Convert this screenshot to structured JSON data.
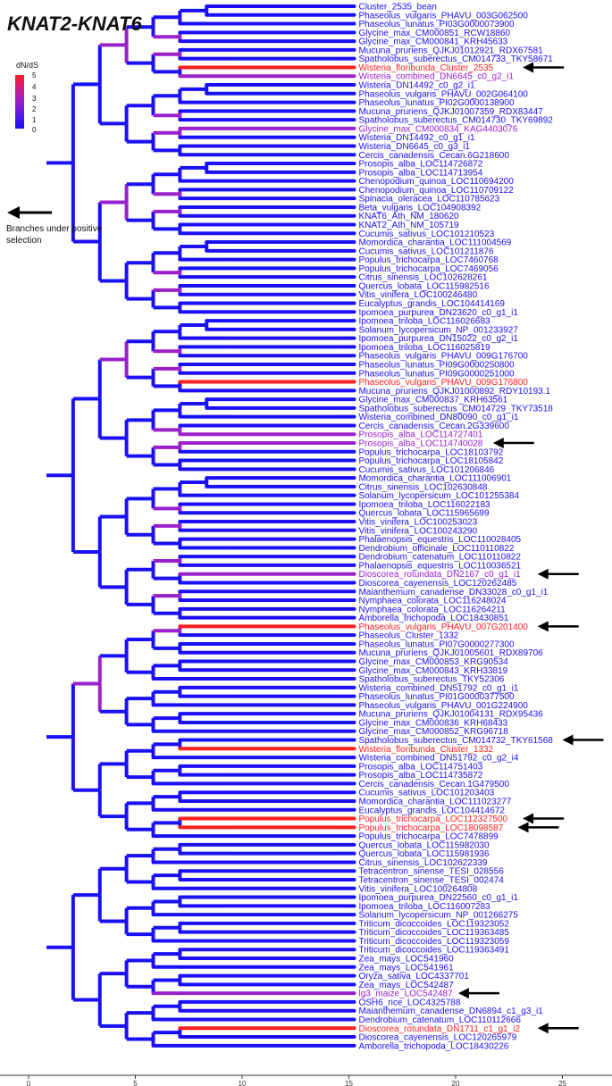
{
  "title": "KNAT2-KNAT6",
  "legend": {
    "title": "dN/dS",
    "ticks": [
      "5",
      "4",
      "3",
      "2",
      "1",
      "0"
    ]
  },
  "arrow_legend": "Branches under positive selection",
  "axis": {
    "ticks": [
      "0",
      "5",
      "10",
      "15",
      "20",
      "25"
    ]
  },
  "colors": {
    "high": "#ff1f1f",
    "mid": "#9a20cc",
    "low": "#1a10f5"
  },
  "leaves": [
    {
      "name": "Cluster_2535_bean",
      "c": "b"
    },
    {
      "name": "Phaseolus_vulgaris_PHAVU_003G062500",
      "c": "b"
    },
    {
      "name": "Phaseolus_lunatus_PI03G0000073900",
      "c": "b"
    },
    {
      "name": "Glycine_max_CM000851_RCW18860",
      "c": "b"
    },
    {
      "name": "Glycine_max_CM000841_KRH45633",
      "c": "b"
    },
    {
      "name": "Mucuna_pruriens_QJKJ01012921_RDX67581",
      "c": "b"
    },
    {
      "name": "Spatholobus_suberectus_CM014733_TKY58671",
      "c": "b"
    },
    {
      "name": "Wisteria_floribunda_Cluster_2535",
      "c": "r",
      "arrow": true
    },
    {
      "name": "Wisteria_combined_DN6645_c0_g2_i1",
      "c": "p"
    },
    {
      "name": "Wisteria_DN14492_c0_g2_i1",
      "c": "b"
    },
    {
      "name": "Phaseolus_vulgaris_PHAVU_002G064100",
      "c": "b"
    },
    {
      "name": "Phaseolus_lunatus_PI02G0000138900",
      "c": "b"
    },
    {
      "name": "Mucuna_pruriens_QJKJ01007359_RDX83447",
      "c": "b"
    },
    {
      "name": "Spatholobus_suberectus_CM014730_TKY69892",
      "c": "b"
    },
    {
      "name": "Glycine_max_CM000834_KAG4403076",
      "c": "p"
    },
    {
      "name": "Wisteria_DN14492_c0_g1_i1",
      "c": "b"
    },
    {
      "name": "Wisteria_DN6645_c0_g3_i1",
      "c": "b"
    },
    {
      "name": "Cercis_canadensis_Cecan.6G218600",
      "c": "b"
    },
    {
      "name": "Prosopis_alba_LOC114726872",
      "c": "b"
    },
    {
      "name": "Prosopis_alba_LOC114713954",
      "c": "b"
    },
    {
      "name": "Chenopodium_quinoa_LOC110694200",
      "c": "b"
    },
    {
      "name": "Chenopodium_quinoa_LOC110709122",
      "c": "b"
    },
    {
      "name": "Spinacia_oleracea_LOC110785623",
      "c": "b"
    },
    {
      "name": "Beta_vulgaris_LOC104908392",
      "c": "b"
    },
    {
      "name": "KNAT6_Ath_NM_180620",
      "c": "b"
    },
    {
      "name": "KNAT2_Ath_NM_105719",
      "c": "b"
    },
    {
      "name": "Cucumis_sativus_LOC101210523",
      "c": "b"
    },
    {
      "name": "Momordica_charantia_LOC111004569",
      "c": "b"
    },
    {
      "name": "Cucumis_sativus_LOC101211876",
      "c": "b"
    },
    {
      "name": "Populus_trichocarpa_LOC7460768",
      "c": "b"
    },
    {
      "name": "Populus_trichocarpa_LOC7469056",
      "c": "b"
    },
    {
      "name": "Citrus_sinensis_LOC102628261",
      "c": "b"
    },
    {
      "name": "Quercus_lobata_LOC115982516",
      "c": "b"
    },
    {
      "name": "Vitis_vinifera_LOC100246480",
      "c": "b"
    },
    {
      "name": "Eucalyptus_grandis_LOC104414169",
      "c": "b"
    },
    {
      "name": "Ipomoea_purpurea_DN23620_c0_g1_i1",
      "c": "b"
    },
    {
      "name": "Ipomoea_triloba_LOC116026683",
      "c": "b"
    },
    {
      "name": "Solanum_lycopersicum_NP_001233927",
      "c": "b"
    },
    {
      "name": "Ipomoea_purpurea_DN15022_c0_g2_i1",
      "c": "b"
    },
    {
      "name": "Ipomoea_triloba_LOC116025819",
      "c": "b"
    },
    {
      "name": "Phaseolus_vulgaris_PHAVU_009G176700",
      "c": "b"
    },
    {
      "name": "Phaseolus_lunatus_PI09G0000250800",
      "c": "b"
    },
    {
      "name": "Phaseolus_lunatus_PI09G0000251000",
      "c": "b"
    },
    {
      "name": "Phaseolus_vulgaris_PHAVU_009G176800",
      "c": "r"
    },
    {
      "name": "Mucuna_pruriens_QJKJ01000892_RDY10193.1",
      "c": "b"
    },
    {
      "name": "Glycine_max_CM000837_KRH63561",
      "c": "b"
    },
    {
      "name": "Spatholobus_suberectus_CM014729_TKY73518",
      "c": "b"
    },
    {
      "name": "Wisteria_combined_DN80090_c0_g1_i1",
      "c": "b"
    },
    {
      "name": "Cercis_canadensis_Cecan.2G339600",
      "c": "b"
    },
    {
      "name": "Prosopis_alba_LOC114727401",
      "c": "p"
    },
    {
      "name": "Prosopis_alba_LOC114740028",
      "c": "p",
      "arrow": true
    },
    {
      "name": "Populus_trichocarpa_LOC18103792",
      "c": "b"
    },
    {
      "name": "Populus_trichocarpa_LOC18105842",
      "c": "b"
    },
    {
      "name": "Cucumis_sativus_LOC101206846",
      "c": "b"
    },
    {
      "name": "Momordica_charantia_LOC111006901",
      "c": "b"
    },
    {
      "name": "Citrus_sinensis_LOC102630848",
      "c": "b"
    },
    {
      "name": "Solanum_lycopersicum_LOC101255384",
      "c": "b"
    },
    {
      "name": "Ipomoea_triloba_LOC116022183",
      "c": "b"
    },
    {
      "name": "Quercus_lobata_LOC115965699",
      "c": "b"
    },
    {
      "name": "Vitis_vinifera_LOC100253023",
      "c": "b"
    },
    {
      "name": "Vitis_vinifera_LOC100243290",
      "c": "b"
    },
    {
      "name": "Phalaenopsis_equestris_LOC110028405",
      "c": "b"
    },
    {
      "name": "Dendrobium_officinale_LOC110110822",
      "c": "b"
    },
    {
      "name": "Dendrobium_catenatum_LOC110110822",
      "c": "b"
    },
    {
      "name": "Phalaenopsis_equestris_LOC110036521",
      "c": "b"
    },
    {
      "name": "Dioscorea_rotundata_DN2167_c0_g1_i1",
      "c": "p",
      "arrow": true
    },
    {
      "name": "Dioscorea_cayenensis_LOC120262485",
      "c": "b"
    },
    {
      "name": "Maianthemum_canadense_DN33028_c0_g1_i1",
      "c": "b"
    },
    {
      "name": "Nymphaea_colorata_LOC116248024",
      "c": "b"
    },
    {
      "name": "Nymphaea_colorata_LOC116264211",
      "c": "b"
    },
    {
      "name": "Amborella_trichopoda_LOC18430851",
      "c": "b"
    },
    {
      "name": "Phaseolus_vulgaris_PHAVU_007G201400",
      "c": "r",
      "arrow": true
    },
    {
      "name": "Phaseolus_Cluster_1332",
      "c": "b"
    },
    {
      "name": "Phaseolus_lunatus_PI07G0000277300",
      "c": "b"
    },
    {
      "name": "Mucuna_pruriens_QJKJ01005601_RDX89706",
      "c": "b"
    },
    {
      "name": "Glycine_max_CM000853_KRG90534",
      "c": "b"
    },
    {
      "name": "Glycine_max_CM000843_KRH33819",
      "c": "b"
    },
    {
      "name": "Spatholobus_suberectus_TKY52306",
      "c": "b"
    },
    {
      "name": "Wisteria_combined_DN51792_c0_g1_i1",
      "c": "b"
    },
    {
      "name": "Phaseolus_lunatus_PI01G0000377500",
      "c": "b"
    },
    {
      "name": "Phaseolus_vulgaris_PHAVU_001G224900",
      "c": "b"
    },
    {
      "name": "Mucuna_pruriens_QJKJ01004131_RDX95436",
      "c": "b"
    },
    {
      "name": "Glycine_max_CM000836_KRH68433",
      "c": "b"
    },
    {
      "name": "Glycine_max_CM000852_KRG96718",
      "c": "b"
    },
    {
      "name": "Spatholobus_suberectus_CM014732_TKY61568",
      "c": "b",
      "arrow": true
    },
    {
      "name": "Wisteria_floribunda_Cluster_1332",
      "c": "r"
    },
    {
      "name": "Wisteria_combined_DN51792_c0_g2_i4",
      "c": "b"
    },
    {
      "name": "Prosopis_alba_LOC114751403",
      "c": "b"
    },
    {
      "name": "Prosopis_alba_LOC114735872",
      "c": "b"
    },
    {
      "name": "Cercis_canadensis_Cecan.1G479500",
      "c": "b"
    },
    {
      "name": "Cucumis_sativus_LOC101203403",
      "c": "b"
    },
    {
      "name": "Momordica_charantia_LOC111023277",
      "c": "b"
    },
    {
      "name": "Eucalyptus_grandis_LOC104414672",
      "c": "b"
    },
    {
      "name": "Populus_trichocarpa_LOC112327500",
      "c": "r",
      "arrow": true
    },
    {
      "name": "Populus_trichocarpa_LOC18098587",
      "c": "r",
      "arrow": true
    },
    {
      "name": "Populus_trichocarpa_LOC7478899",
      "c": "b"
    },
    {
      "name": "Quercus_lobata_LOC115982030",
      "c": "b"
    },
    {
      "name": "Quercus_lobata_LOC115981936",
      "c": "b"
    },
    {
      "name": "Citrus_sinensis_LOC102622339",
      "c": "b"
    },
    {
      "name": "Tetracentron_sinense_TESI_028556",
      "c": "b"
    },
    {
      "name": "Tetracentron_sinense_TESI_002474",
      "c": "b"
    },
    {
      "name": "Vitis_vinifera_LOC100264808",
      "c": "b"
    },
    {
      "name": "Ipomoea_purpurea_DN22560_c0_g1_i1",
      "c": "b"
    },
    {
      "name": "Ipomoea_triloba_LOC116007283",
      "c": "b"
    },
    {
      "name": "Solanum_lycopersicum_NP_001266275",
      "c": "b"
    },
    {
      "name": "Triticum_dicoccoides_LOC119323052",
      "c": "b"
    },
    {
      "name": "Triticum_dicoccoides_LOC119363485",
      "c": "b"
    },
    {
      "name": "Triticum_dicoccoides_LOC119323059",
      "c": "b"
    },
    {
      "name": "Triticum_dicoccoides_LOC119363491",
      "c": "b"
    },
    {
      "name": "Zea_mays_LOC541960",
      "c": "b"
    },
    {
      "name": "Zea_mays_LOC541961",
      "c": "b"
    },
    {
      "name": "Oryza_sativa_LOC4337701",
      "c": "b"
    },
    {
      "name": "Zea_mays_LOC542487",
      "c": "b"
    },
    {
      "name": "lg3_maize_LOC542487",
      "c": "p",
      "arrow": true
    },
    {
      "name": "OSH6_rice_LOC4325788",
      "c": "b"
    },
    {
      "name": "Maianthemum_canadense_DN6894_c1_g3_i1",
      "c": "b"
    },
    {
      "name": "Dendrobium_catenatum_LOC110112666",
      "c": "b"
    },
    {
      "name": "Dioscorea_rotundata_DN1711_c1_g1_i2",
      "c": "r",
      "arrow": true
    },
    {
      "name": "Dioscorea_cayenensis_LOC120265979",
      "c": "b"
    },
    {
      "name": "Amborella_trichopoda_LOC18430226",
      "c": "b"
    }
  ]
}
